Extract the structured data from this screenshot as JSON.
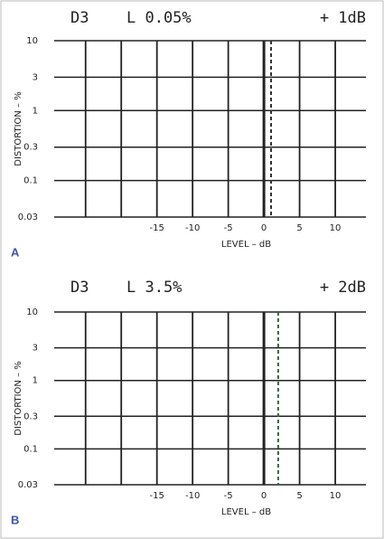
{
  "chart_data": [
    {
      "type": "line",
      "panel": "A",
      "label": "D3",
      "subtitle": "L 0.05%",
      "annotation": "+ 1dB",
      "xlabel": "LEVEL – dB",
      "ylabel": "DISTORTION – %",
      "xlim": [
        -29.4,
        14.3
      ],
      "xticks": [
        -15,
        -10,
        -5,
        0,
        5,
        10
      ],
      "x_gridlines": [
        -25,
        -20,
        -15,
        -10,
        -5,
        0,
        5,
        10
      ],
      "ylim": [
        0.03,
        10
      ],
      "yticks": [
        10,
        3,
        1,
        0.3,
        0.1,
        0.03
      ],
      "log_y": true,
      "grid": true,
      "series": [
        {
          "color": "#333333",
          "x": [
            1,
            1
          ],
          "values": [
            10,
            0.03
          ]
        }
      ]
    },
    {
      "type": "line",
      "panel": "B",
      "label": "D3",
      "subtitle": "L 3.5%",
      "annotation": "+ 2dB",
      "xlabel": "LEVEL – dB",
      "ylabel": "DISTORTION – %",
      "xlim": [
        -29.4,
        14.3
      ],
      "xticks": [
        -15,
        -10,
        -5,
        0,
        5,
        10
      ],
      "x_gridlines": [
        -25,
        -20,
        -15,
        -10,
        -5,
        0,
        5,
        10
      ],
      "ylim": [
        0.03,
        10
      ],
      "yticks": [
        10,
        3,
        1,
        0.3,
        0.1,
        0.03
      ],
      "log_y": true,
      "grid": true,
      "series": [
        {
          "color": "#2e6b3a",
          "x": [
            2,
            2
          ],
          "values": [
            10,
            0.03
          ]
        }
      ]
    }
  ]
}
